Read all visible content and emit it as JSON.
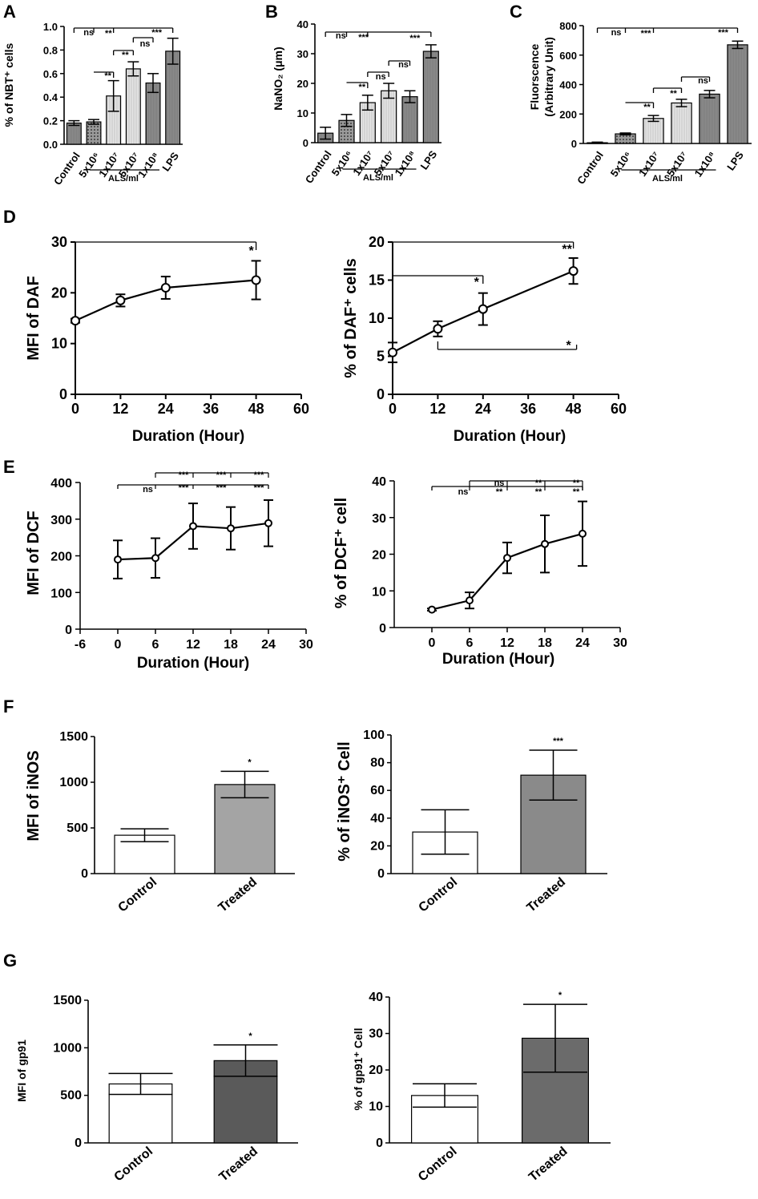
{
  "chart_data": [
    {
      "id": "A",
      "panel_label": "A",
      "type": "bar",
      "ylabel": "% of NBT⁺ cells",
      "ylim": [
        0,
        1.0
      ],
      "yticks": [
        "0.0",
        "0.2",
        "0.4",
        "0.6",
        "0.8",
        "1.0"
      ],
      "categories": [
        "Control",
        "5x10⁶",
        "1x10⁷",
        "5x10⁷",
        "1x10⁸",
        "LPS"
      ],
      "values": [
        0.18,
        0.19,
        0.41,
        0.64,
        0.52,
        0.79
      ],
      "errors": [
        0.02,
        0.02,
        0.13,
        0.06,
        0.08,
        0.11
      ],
      "group_label": "ALS/ml",
      "significance": [
        "ns",
        "**",
        "**",
        "**",
        "ns",
        "***"
      ]
    },
    {
      "id": "B",
      "panel_label": "B",
      "type": "bar",
      "ylabel": "NaNO₂ (μm)",
      "ylim": [
        0,
        40
      ],
      "yticks": [
        "0",
        "10",
        "20",
        "30",
        "40"
      ],
      "categories": [
        "Control",
        "5x10⁶",
        "1x10⁷",
        "5x10⁷",
        "1x10⁸",
        "LPS"
      ],
      "values": [
        3.2,
        7.5,
        13.5,
        17.5,
        15.5,
        30.8
      ],
      "errors": [
        2.0,
        2.0,
        2.5,
        2.5,
        2.0,
        2.2
      ],
      "group_label": "ALS/ml",
      "significance": [
        "ns",
        "***",
        "***",
        "**",
        "ns",
        "ns"
      ]
    },
    {
      "id": "C",
      "panel_label": "C",
      "type": "bar",
      "ylabel": "Fluorscence (Arbitrary Unit)",
      "ylim": [
        0,
        800
      ],
      "yticks": [
        "0",
        "200",
        "400",
        "600",
        "800"
      ],
      "categories": [
        "Control",
        "5x10⁶",
        "1x10⁷",
        "5x10⁷",
        "1x10⁸",
        "LPS"
      ],
      "values": [
        5,
        65,
        170,
        275,
        335,
        670
      ],
      "errors": [
        4,
        6,
        20,
        25,
        25,
        25
      ],
      "group_label": "ALS/ml",
      "significance": [
        "ns",
        "***",
        "***",
        "**",
        "**",
        "ns"
      ]
    },
    {
      "id": "D1",
      "panel_label": "D",
      "type": "line",
      "ylabel": "MFI of DAF",
      "xlabel": "Duration (Hour)",
      "xlim": [
        0,
        60
      ],
      "ylim": [
        0,
        30
      ],
      "xticks": [
        "0",
        "12",
        "24",
        "36",
        "48",
        "60"
      ],
      "yticks": [
        "0",
        "10",
        "20",
        "30"
      ],
      "x": [
        0,
        12,
        24,
        48
      ],
      "y": [
        14.5,
        18.5,
        21.0,
        22.5
      ],
      "errors": [
        0.4,
        1.2,
        2.2,
        3.8
      ],
      "significance": [
        "*"
      ]
    },
    {
      "id": "D2",
      "type": "line",
      "ylabel": "% of DAF⁺ cells",
      "xlabel": "Duration (Hour)",
      "xlim": [
        0,
        60
      ],
      "ylim": [
        0,
        20
      ],
      "xticks": [
        "0",
        "12",
        "24",
        "36",
        "48",
        "60"
      ],
      "yticks": [
        "0",
        "5",
        "10",
        "15",
        "20"
      ],
      "x": [
        0,
        12,
        24,
        48
      ],
      "y": [
        5.5,
        8.6,
        11.2,
        16.2
      ],
      "errors": [
        1.3,
        1.0,
        2.1,
        1.7
      ],
      "significance": [
        "**",
        "*",
        "*"
      ]
    },
    {
      "id": "E1",
      "panel_label": "E",
      "type": "line",
      "ylabel": "MFI of DCF",
      "xlabel": "Duration (Hour)",
      "xlim": [
        -6,
        30
      ],
      "ylim": [
        0,
        400
      ],
      "xticks": [
        "-6",
        "0",
        "6",
        "12",
        "18",
        "24",
        "30"
      ],
      "yticks": [
        "0",
        "100",
        "200",
        "300",
        "400"
      ],
      "x": [
        0,
        6,
        12,
        18,
        24
      ],
      "y": [
        190,
        194,
        281,
        275,
        289
      ],
      "errors": [
        52,
        54,
        62,
        58,
        63
      ],
      "significance": [
        "***",
        "***",
        "***",
        "ns",
        "***",
        "***",
        "***"
      ]
    },
    {
      "id": "E2",
      "type": "line",
      "ylabel": "% of DCF⁺ cell",
      "xlabel": "Duration (Hour)",
      "xlim": [
        -6,
        30
      ],
      "ylim": [
        0,
        40
      ],
      "xticks": [
        "0",
        "6",
        "12",
        "18",
        "24",
        "30"
      ],
      "yticks": [
        "0",
        "10",
        "20",
        "30",
        "40"
      ],
      "x": [
        0,
        6,
        12,
        18,
        24
      ],
      "y": [
        4.9,
        7.4,
        19.0,
        22.8,
        25.6
      ],
      "errors": [
        0.3,
        2.2,
        4.2,
        7.8,
        8.8
      ],
      "significance": [
        "ns",
        "**",
        "**",
        "ns",
        "**",
        "**"
      ]
    },
    {
      "id": "F1",
      "panel_label": "F",
      "type": "bar",
      "ylabel": "MFI of iNOS",
      "ylim": [
        0,
        1500
      ],
      "yticks": [
        "0",
        "500",
        "1000",
        "1500"
      ],
      "categories": [
        "Control",
        "Treated"
      ],
      "values": [
        420,
        975
      ],
      "errors": [
        70,
        145
      ],
      "significance": [
        "*"
      ]
    },
    {
      "id": "F2",
      "type": "bar",
      "ylabel": "% of iNOS⁺ Cell",
      "ylim": [
        0,
        100
      ],
      "yticks": [
        "0",
        "20",
        "40",
        "60",
        "80",
        "100"
      ],
      "categories": [
        "Control",
        "Treated"
      ],
      "values": [
        30,
        71
      ],
      "errors": [
        16,
        18
      ],
      "significance": [
        "***"
      ]
    },
    {
      "id": "G1",
      "panel_label": "G",
      "type": "bar",
      "ylabel": "MFI of gp91",
      "ylim": [
        0,
        1500
      ],
      "yticks": [
        "0",
        "500",
        "1000",
        "1500"
      ],
      "categories": [
        "Control",
        "Treated"
      ],
      "values": [
        620,
        865
      ],
      "errors": [
        110,
        165
      ],
      "significance": [
        "*"
      ]
    },
    {
      "id": "G2",
      "type": "bar",
      "ylabel": "% of gp91⁺ Cell",
      "ylim": [
        0,
        40
      ],
      "yticks": [
        "0",
        "10",
        "20",
        "30",
        "40"
      ],
      "categories": [
        "Control",
        "Treated"
      ],
      "values": [
        13,
        28.7
      ],
      "errors": [
        3.2,
        9.3
      ],
      "significance": [
        "*"
      ]
    }
  ]
}
